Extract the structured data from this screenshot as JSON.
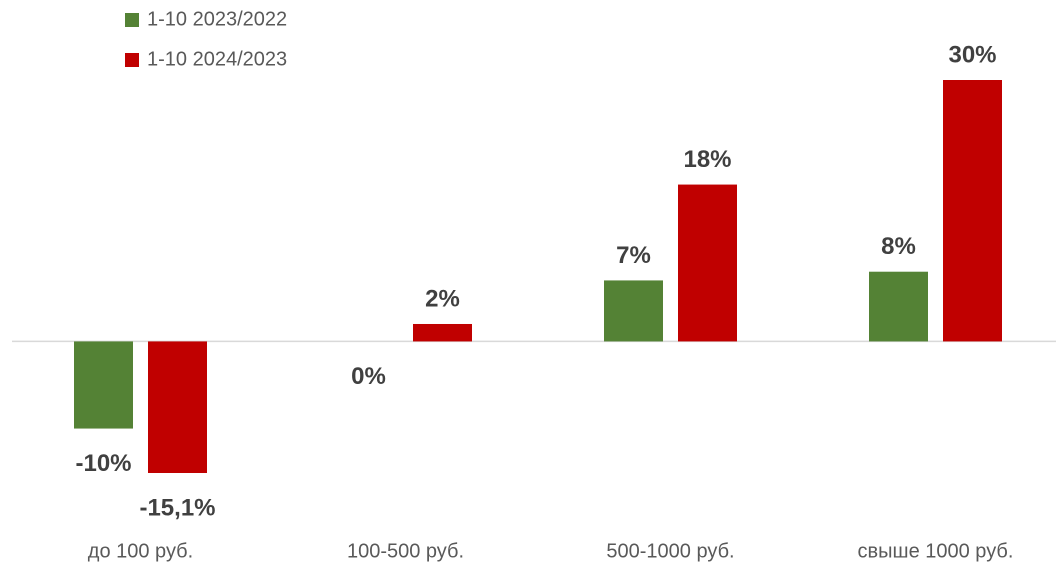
{
  "chart_data": {
    "type": "bar",
    "categories": [
      "до 100 руб.",
      "100-500 руб.",
      "500-1000 руб.",
      "свыше 1000 руб."
    ],
    "series": [
      {
        "name": "1-10 2023/2022",
        "color": "#548235",
        "values": [
          -10,
          0,
          7,
          8
        ],
        "value_labels": [
          "-10%",
          "0%",
          "7%",
          "8%"
        ]
      },
      {
        "name": "1-10 2024/2023",
        "color": "#c00000",
        "values": [
          -15.1,
          2,
          18,
          30
        ],
        "value_labels": [
          "-15,1%",
          "2%",
          "18%",
          "30%"
        ]
      }
    ],
    "legend": "top-left"
  }
}
